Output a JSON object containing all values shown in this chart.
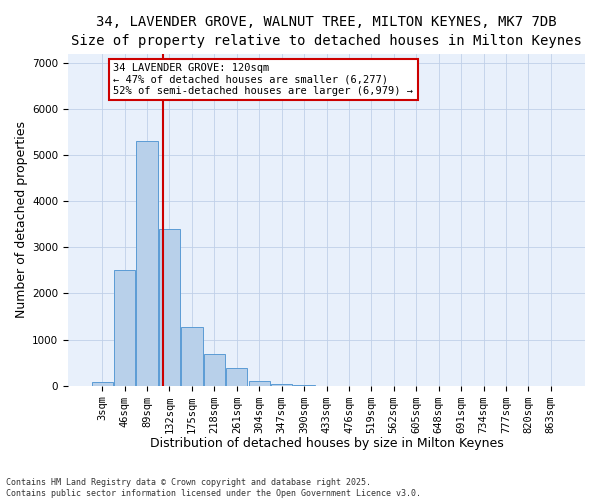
{
  "title_line1": "34, LAVENDER GROVE, WALNUT TREE, MILTON KEYNES, MK7 7DB",
  "title_line2": "Size of property relative to detached houses in Milton Keynes",
  "xlabel": "Distribution of detached houses by size in Milton Keynes",
  "ylabel": "Number of detached properties",
  "categories": [
    "3sqm",
    "46sqm",
    "89sqm",
    "132sqm",
    "175sqm",
    "218sqm",
    "261sqm",
    "304sqm",
    "347sqm",
    "390sqm",
    "433sqm",
    "476sqm",
    "519sqm",
    "562sqm",
    "605sqm",
    "648sqm",
    "691sqm",
    "734sqm",
    "777sqm",
    "820sqm",
    "863sqm"
  ],
  "bar_heights": [
    80,
    2500,
    5300,
    3400,
    1280,
    680,
    380,
    100,
    45,
    5,
    0,
    0,
    0,
    0,
    0,
    0,
    0,
    0,
    0,
    0,
    0
  ],
  "bar_color": "#b8d0ea",
  "bar_edge_color": "#5b9bd5",
  "vline_color": "#cc0000",
  "annotation_text": "34 LAVENDER GROVE: 120sqm\n← 47% of detached houses are smaller (6,277)\n52% of semi-detached houses are larger (6,979) →",
  "annotation_box_color": "#cc0000",
  "ylim": [
    0,
    7200
  ],
  "yticks": [
    0,
    1000,
    2000,
    3000,
    4000,
    5000,
    6000,
    7000
  ],
  "bg_color": "#e8f0fb",
  "grid_color": "#c0d0e8",
  "footnote": "Contains HM Land Registry data © Crown copyright and database right 2025.\nContains public sector information licensed under the Open Government Licence v3.0.",
  "title_fontsize": 10,
  "subtitle_fontsize": 9,
  "axis_label_fontsize": 9,
  "tick_fontsize": 7.5,
  "annot_fontsize": 7.5
}
